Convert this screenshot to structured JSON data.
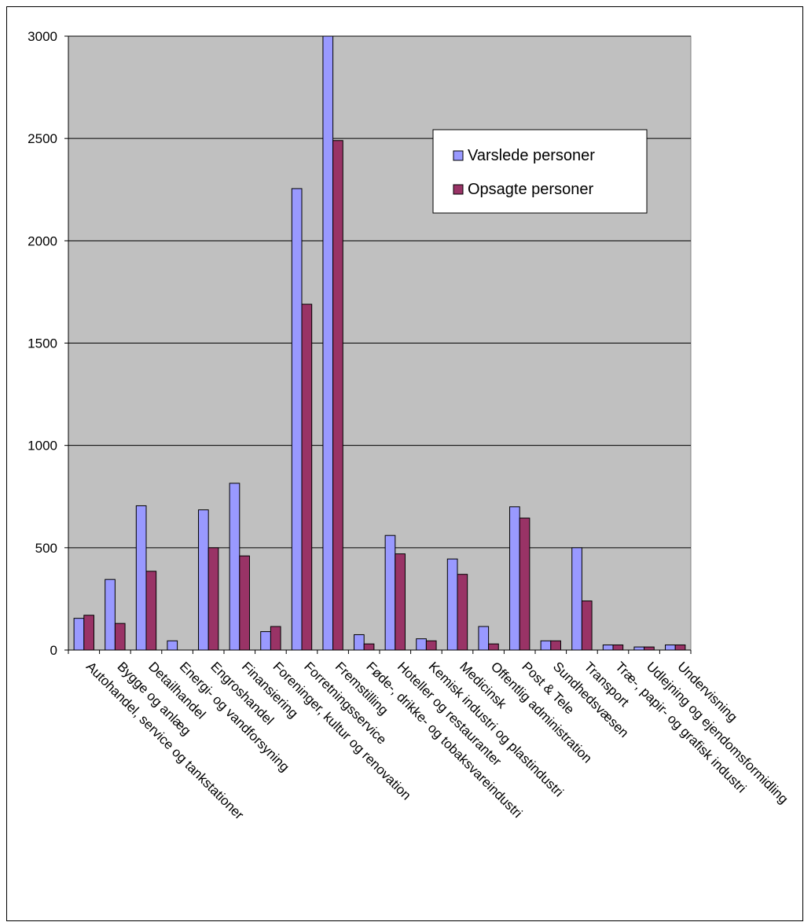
{
  "chart_data": {
    "type": "bar",
    "title": "",
    "xlabel": "",
    "ylabel": "",
    "ylim": [
      0,
      3000
    ],
    "yticks": [
      0,
      500,
      1000,
      1500,
      2000,
      2500,
      3000
    ],
    "grid": true,
    "legend_position": "top-right",
    "plot_background": "#c0c0c0",
    "categories": [
      "Autohandel, service og tankstationer",
      "Bygge og anlæg",
      "Detailhandel",
      "Energi- og vandforsyning",
      "Engroshandel",
      "Finansiering",
      "Foreninger, kultur og renovation",
      "Forretningsservice",
      "Fremstilling",
      "Føde-, drikke- og tobaksvareindustri",
      "Hoteller og restauranter",
      "Kemisk industri og plastindustri",
      "Medicinsk",
      "Offentlig administration",
      "Post & Tele",
      "Sundhedsvæsen",
      "Transport",
      "Træ-, papir- og grafisk industri",
      "Udlejning og ejendomsformidling",
      "Undervisning"
    ],
    "series": [
      {
        "name": "Varslede personer",
        "color": "#9999ff",
        "values": [
          155,
          345,
          705,
          45,
          685,
          815,
          90,
          2255,
          3020,
          75,
          560,
          55,
          445,
          115,
          700,
          45,
          500,
          25,
          15,
          25
        ]
      },
      {
        "name": "Opsagte personer",
        "color": "#993366",
        "values": [
          170,
          130,
          385,
          0,
          500,
          460,
          115,
          1690,
          2490,
          30,
          470,
          45,
          370,
          30,
          645,
          45,
          240,
          25,
          15,
          25
        ]
      }
    ]
  }
}
